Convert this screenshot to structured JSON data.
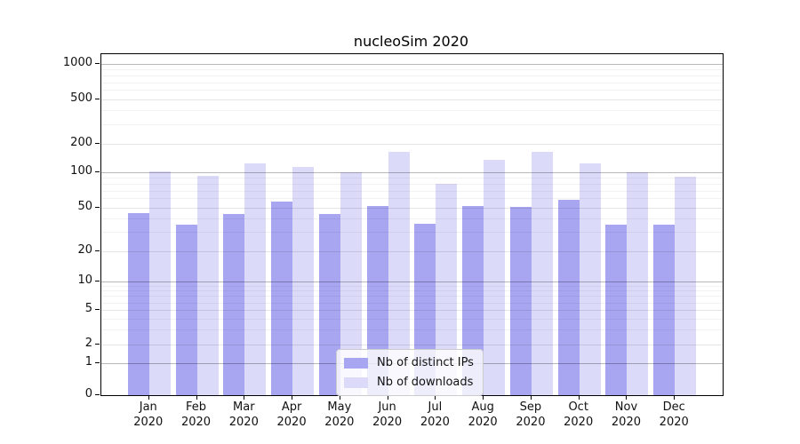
{
  "title": "nucleoSim 2020",
  "colors": {
    "bar_distinct_ips": "#a8a6f1",
    "bar_downloads": "#dbdaf8",
    "axis": "#000000"
  },
  "legend": {
    "items": [
      {
        "key": "ips",
        "label": "Nb of distinct IPs"
      },
      {
        "key": "downloads",
        "label": "Nb of downloads"
      }
    ]
  },
  "chart_data": {
    "type": "bar",
    "title": "nucleoSim 2020",
    "months": [
      "Jan",
      "Feb",
      "Mar",
      "Apr",
      "May",
      "Jun",
      "Jul",
      "Aug",
      "Sep",
      "Oct",
      "Nov",
      "Dec"
    ],
    "year_label": "2020",
    "series": [
      {
        "key": "ips",
        "name": "Nb of distinct IPs",
        "color": "#a8a6f1",
        "values": [
          45,
          35,
          44,
          56,
          44,
          52,
          36,
          52,
          51,
          58,
          35,
          35
        ]
      },
      {
        "key": "downloads",
        "name": "Nb of downloads",
        "color": "#dbdaf8",
        "values": [
          103,
          94,
          125,
          115,
          101,
          165,
          80,
          135,
          165,
          125,
          100,
          92
        ]
      }
    ],
    "y_axis": {
      "scale": "symlog",
      "ticks": [
        0,
        1,
        2,
        5,
        10,
        20,
        50,
        100,
        200,
        500,
        1000
      ]
    },
    "xlabel": "",
    "ylabel": "",
    "grid": true,
    "legend_position": "lower center"
  }
}
